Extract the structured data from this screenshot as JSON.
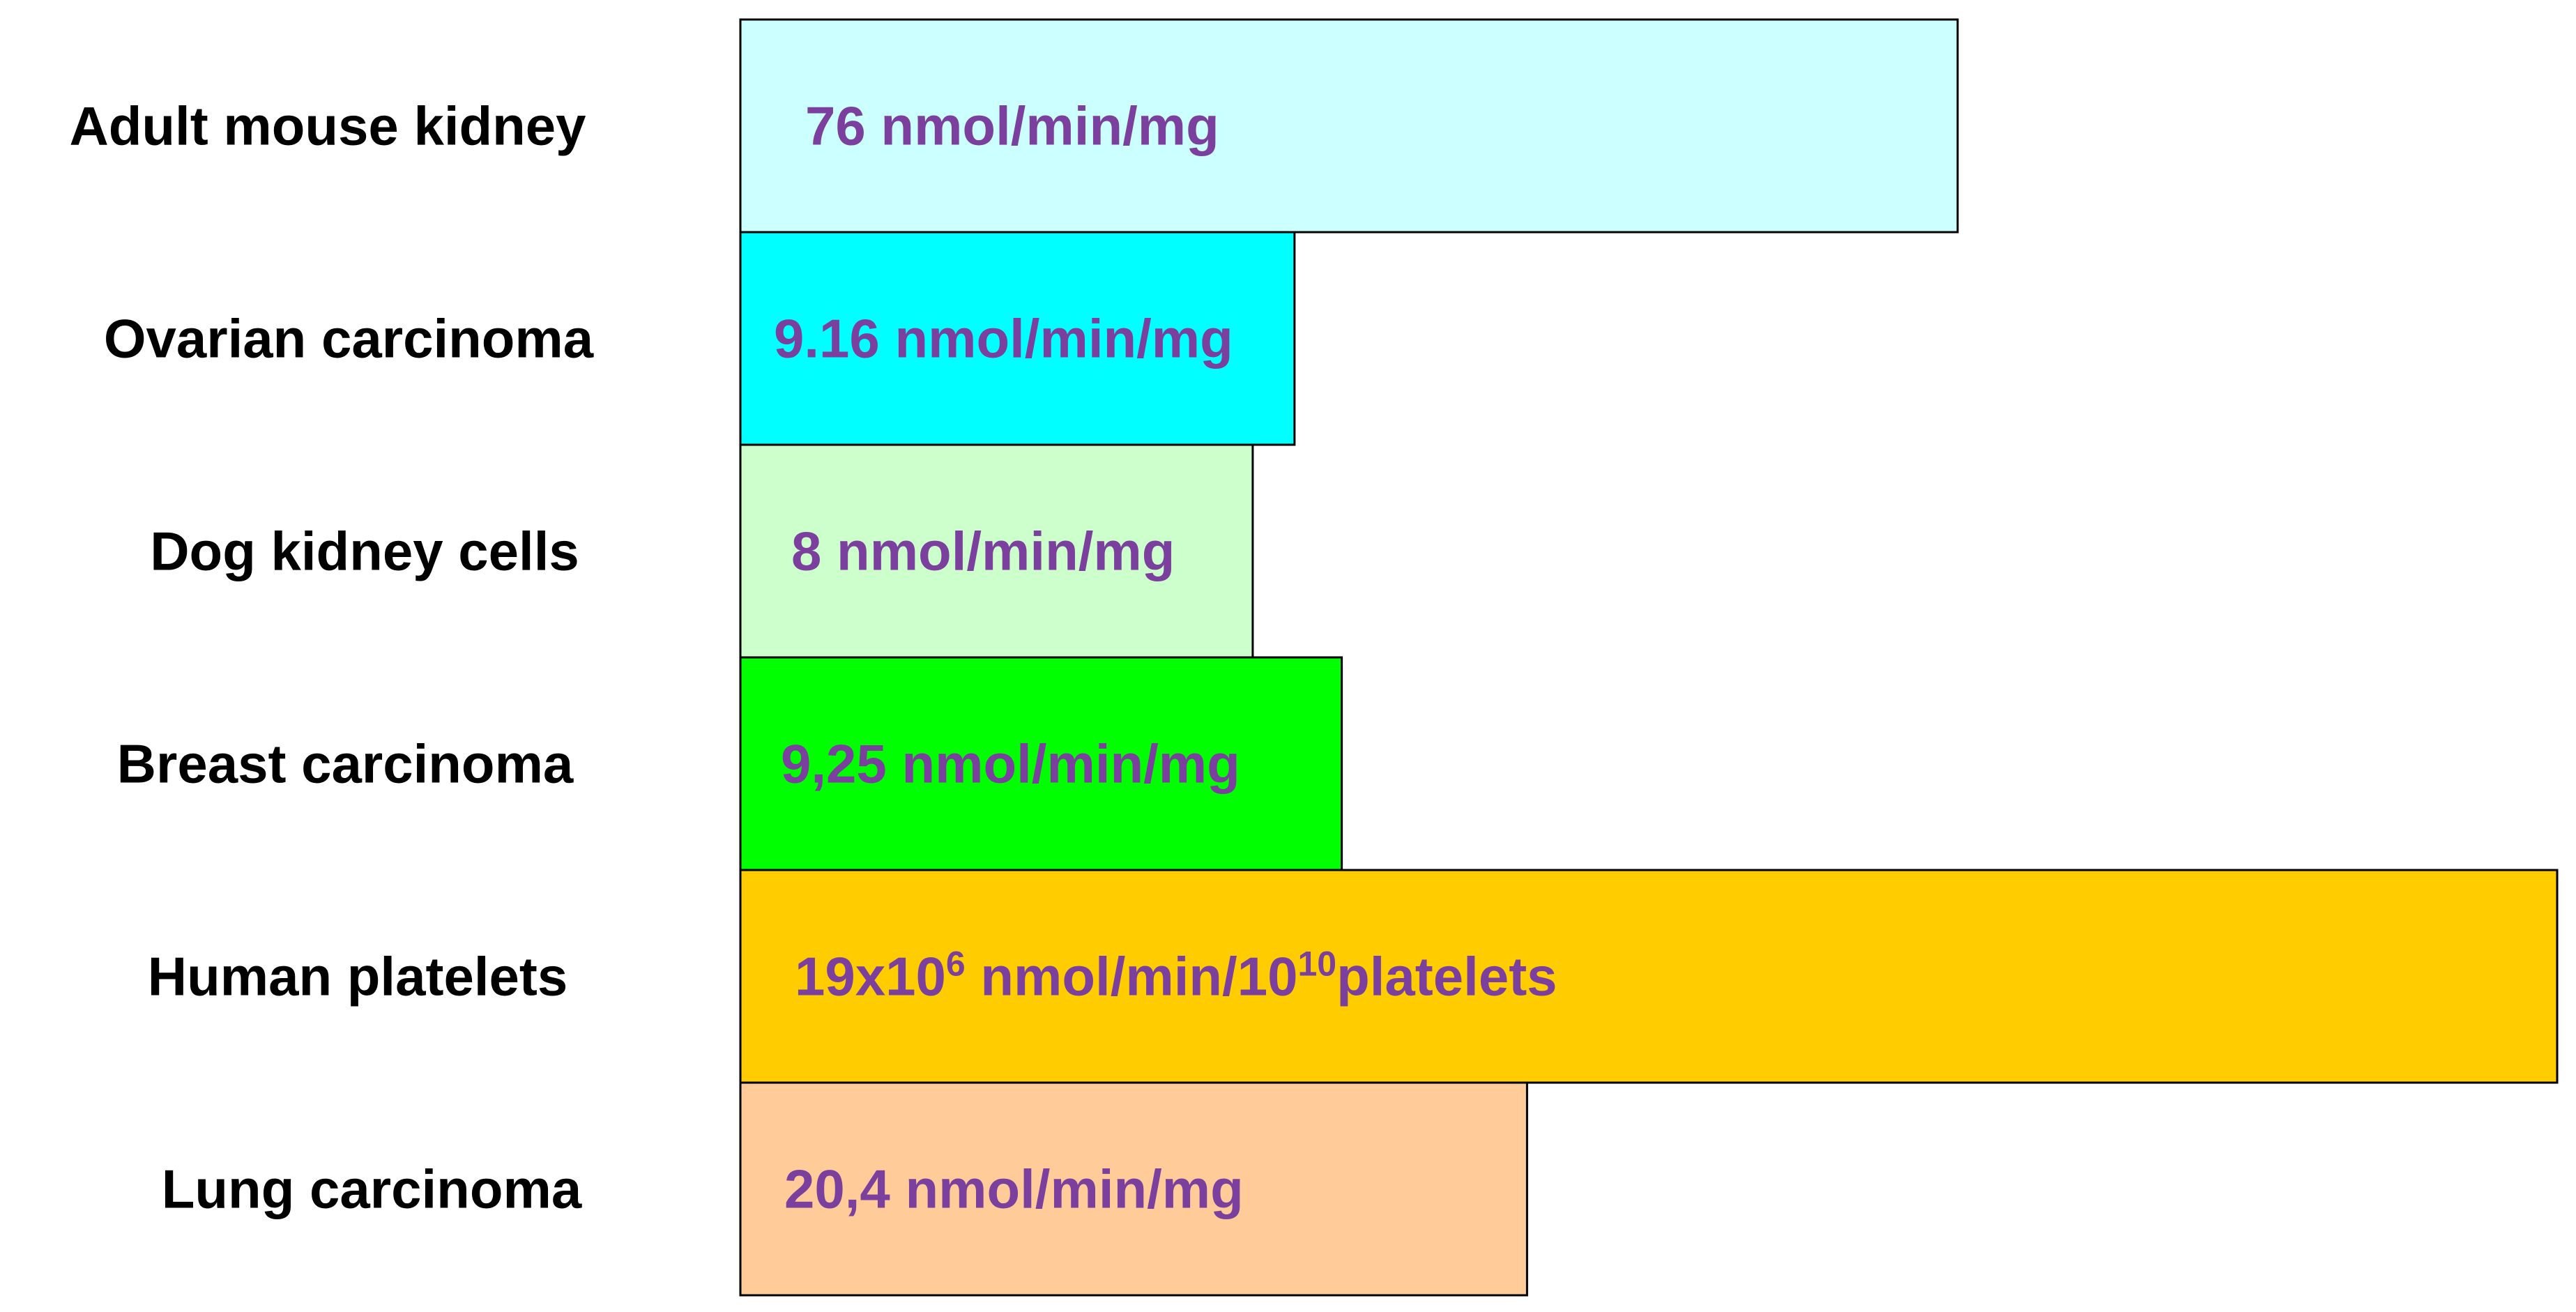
{
  "chart_data": {
    "type": "bar",
    "orientation": "horizontal",
    "categories": [
      "Adult mouse kidney",
      "Ovarian carcinoma",
      "Dog kidney cells",
      "Breast carcinoma",
      "Human platelets",
      "Lung carcinoma"
    ],
    "relative_lengths": [
      0.67,
      0.305,
      0.282,
      0.331,
      1.0,
      0.433
    ],
    "value_labels": [
      {
        "parts": [
          {
            "t": "76 nmol/min/mg"
          }
        ]
      },
      {
        "parts": [
          {
            "t": "9.16 nmol/min/mg"
          }
        ]
      },
      {
        "parts": [
          {
            "t": "8 nmol/min/mg"
          }
        ]
      },
      {
        "parts": [
          {
            "t": "9,25 nmol/min/mg"
          }
        ]
      },
      {
        "parts": [
          {
            "t": "19x10"
          },
          {
            "t": "6",
            "sup": true
          },
          {
            "t": " nmol/min/10"
          },
          {
            "t": "10",
            "sup": true
          },
          {
            "t": "platelets"
          }
        ]
      },
      {
        "parts": [
          {
            "t": "20,4 nmol/min/mg"
          }
        ]
      }
    ],
    "colors": [
      "#ccffff",
      "#00ffff",
      "#ccffcc",
      "#00ff00",
      "#ffcc00",
      "#ffcc99"
    ],
    "value_label_color": "#7b3f9e"
  }
}
